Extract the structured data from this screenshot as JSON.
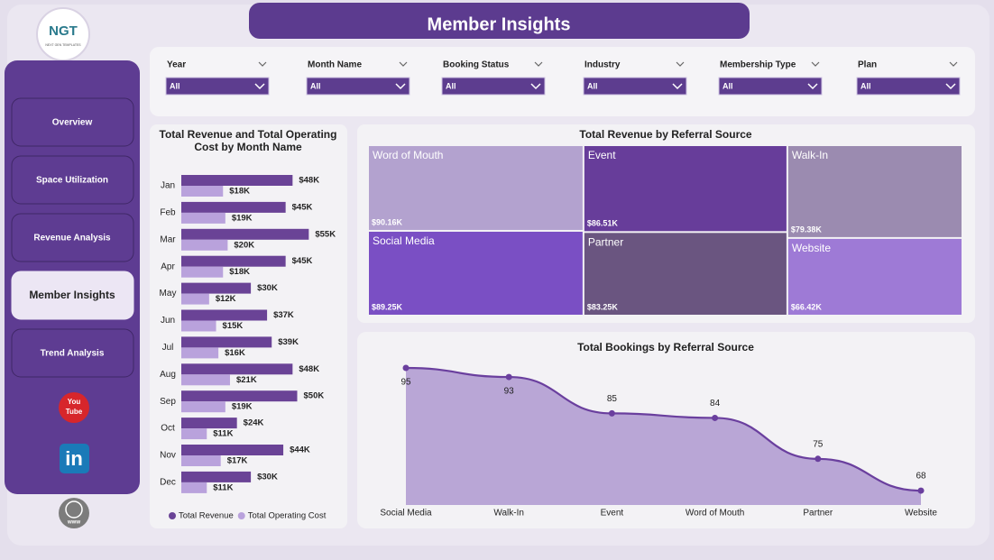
{
  "header": {
    "logo": "NGT",
    "logo_sub": "NEXT GEN TEMPLATES",
    "title": "Member Insights"
  },
  "nav": {
    "items": [
      "Overview",
      "Space Utilization",
      "Revenue Analysis",
      "Member Insights",
      "Trend Analysis"
    ],
    "active": 3
  },
  "sidebar_icons": {
    "youtube": [
      "You",
      "Tube"
    ],
    "linkedin": "in",
    "web": "www"
  },
  "filters": [
    {
      "label": "Year",
      "value": "All"
    },
    {
      "label": "Month Name",
      "value": "All"
    },
    {
      "label": "Booking Status",
      "value": "All"
    },
    {
      "label": "Industry",
      "value": "All"
    },
    {
      "label": "Membership Type",
      "value": "All"
    },
    {
      "label": "Plan",
      "value": "All"
    }
  ],
  "chart_data": [
    {
      "type": "bar",
      "orientation": "horizontal",
      "title": "Total Revenue and Total Operating Cost by Month Name",
      "categories": [
        "Jan",
        "Feb",
        "Mar",
        "Apr",
        "May",
        "Jun",
        "Jul",
        "Aug",
        "Sep",
        "Oct",
        "Nov",
        "Dec"
      ],
      "series": [
        {
          "name": "Total Revenue",
          "color": "#6a4396",
          "values": [
            48000,
            45000,
            55000,
            45000,
            30000,
            37000,
            39000,
            48000,
            50000,
            24000,
            44000,
            30000
          ],
          "value_labels": [
            "$48K",
            "$45K",
            "$55K",
            "$45K",
            "$30K",
            "$37K",
            "$39K",
            "$48K",
            "$50K",
            "$24K",
            "$44K",
            "$30K"
          ]
        },
        {
          "name": "Total Operating Cost",
          "color": "#b9a2dc",
          "values": [
            18000,
            19000,
            20000,
            18000,
            12000,
            15000,
            16000,
            21000,
            19000,
            11000,
            17000,
            11000
          ],
          "value_labels": [
            "$18K",
            "$19K",
            "$20K",
            "$18K",
            "$12K",
            "$15K",
            "$16K",
            "$21K",
            "$19K",
            "$11K",
            "$17K",
            "$11K"
          ]
        }
      ],
      "legend": "bottom"
    },
    {
      "type": "treemap",
      "title": "Total Revenue by Referral Source",
      "categories": [
        "Word of Mouth",
        "Event",
        "Walk-In",
        "Social Media",
        "Partner",
        "Website"
      ],
      "values": [
        90160,
        86510,
        79380,
        89250,
        83250,
        66420
      ],
      "value_labels": [
        "$90.16K",
        "$86.51K",
        "$79.38K",
        "$89.25K",
        "$83.25K",
        "$66.42K"
      ],
      "colors": [
        "#b3a2cf",
        "#673d9a",
        "#9b8bb0",
        "#7a4fc4",
        "#6a5580",
        "#9e7ad6"
      ]
    },
    {
      "type": "area",
      "title": "Total Bookings by Referral Source",
      "categories": [
        "Social Media",
        "Walk-In",
        "Event",
        "Word of Mouth",
        "Partner",
        "Website"
      ],
      "values": [
        95,
        93,
        85,
        84,
        75,
        68
      ],
      "color": "#6a3f9e",
      "fill": "#b9a6d6"
    }
  ]
}
